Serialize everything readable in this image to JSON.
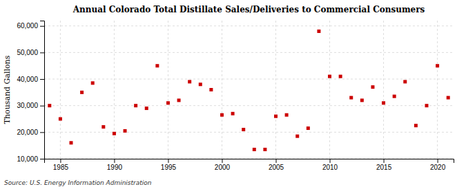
{
  "chart_data": {
    "type": "scatter",
    "title": "Annual Colorado Total Distillate Sales/Deliveries to Commercial Consumers",
    "y_label": "Thousand Gallons",
    "annotations": [
      "Source: U.S. Energy Information Administration"
    ],
    "color": "#cc0000",
    "marker": "square",
    "grid": true,
    "xlim": [
      1983.5,
      2021.5
    ],
    "ylim": [
      10000,
      62000
    ],
    "xticks": [
      1985,
      1990,
      1995,
      2000,
      2005,
      2010,
      2015,
      2020
    ],
    "yticks": [
      {
        "value": 10000,
        "label": "10,000"
      },
      {
        "value": 20000,
        "label": "20,000"
      },
      {
        "value": 30000,
        "label": "30,000"
      },
      {
        "value": 40000,
        "label": "40,000"
      },
      {
        "value": 50000,
        "label": "50,000"
      },
      {
        "value": 60000,
        "label": "60,000"
      }
    ],
    "x": [
      1984,
      1985,
      1986,
      1987,
      1988,
      1989,
      1990,
      1991,
      1992,
      1993,
      1994,
      1995,
      1996,
      1997,
      1998,
      1999,
      2000,
      2001,
      2002,
      2003,
      2004,
      2005,
      2006,
      2007,
      2008,
      2009,
      2010,
      2011,
      2012,
      2013,
      2014,
      2015,
      2016,
      2017,
      2018,
      2019,
      2020,
      2021
    ],
    "values": [
      30000,
      25000,
      16000,
      35000,
      38500,
      22000,
      19500,
      20500,
      30000,
      29000,
      45000,
      31000,
      32000,
      39000,
      38000,
      36000,
      26500,
      27000,
      21000,
      13500,
      13500,
      26000,
      26500,
      18500,
      21500,
      58000,
      41000,
      41000,
      33000,
      32000,
      37000,
      31000,
      33500,
      39000,
      22500,
      30000,
      45000,
      33000
    ]
  }
}
